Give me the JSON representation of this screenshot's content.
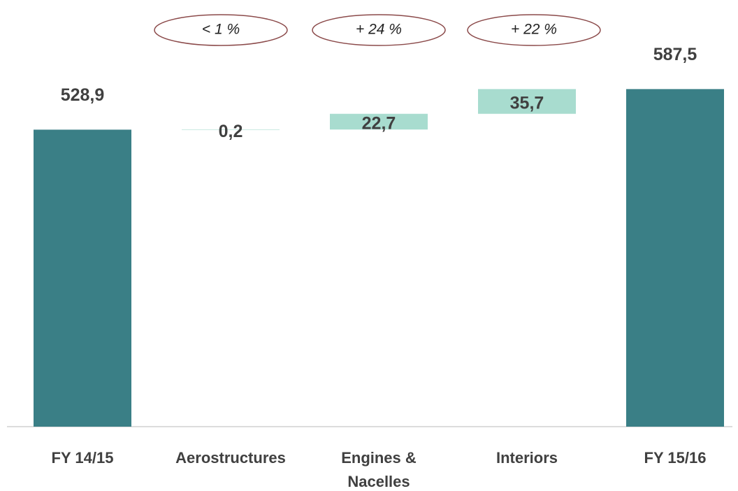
{
  "chart_data": {
    "type": "waterfall",
    "categories": [
      "FY 14/15",
      "Aerostructures",
      "Engines & Nacelles",
      "Interiors",
      "FY 15/16"
    ],
    "values": [
      528.9,
      0.2,
      22.7,
      35.7,
      587.5
    ],
    "value_labels": [
      "528,9",
      "0,2",
      "22,7",
      "35,7",
      "587,5"
    ],
    "totals": [
      true,
      false,
      false,
      false,
      true
    ],
    "total_color": "#3a7f86",
    "increase_color": "#a8dccf",
    "annotations": [
      "< 1 %",
      "+ 24 %",
      "+ 22 %"
    ],
    "ylim": [
      100,
      600
    ]
  }
}
